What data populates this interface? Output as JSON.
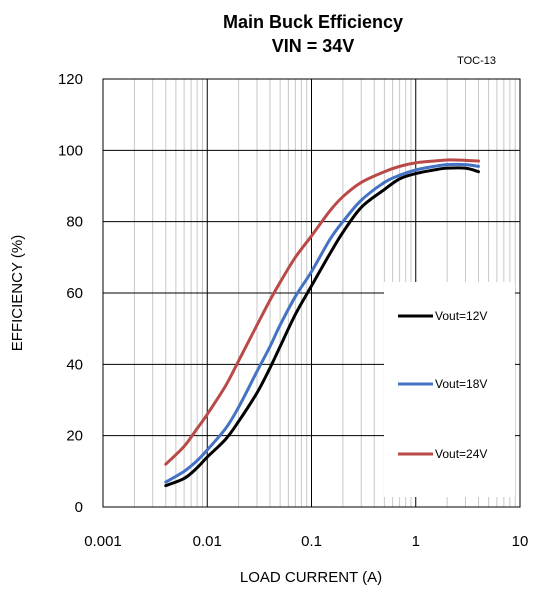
{
  "chart_data": {
    "type": "line",
    "title": "Main Buck Efficiency",
    "subtitle": "VIN = 34V",
    "code": "TOC-13",
    "xlabel": "LOAD CURRENT (A)",
    "ylabel": "EFFICIENCY (%)",
    "xscale": "log",
    "xlim": [
      0.001,
      10
    ],
    "ylim": [
      0,
      120
    ],
    "xticks": [
      "0.001",
      "0.01",
      "0.1",
      "1",
      "10"
    ],
    "yticks": [
      "0",
      "20",
      "40",
      "60",
      "80",
      "100",
      "120"
    ],
    "grid": true,
    "legend_position": "right",
    "series": [
      {
        "name": "Vout=12V",
        "color": "#000000",
        "x": [
          0.004,
          0.006,
          0.008,
          0.01,
          0.015,
          0.02,
          0.03,
          0.04,
          0.05,
          0.07,
          0.1,
          0.15,
          0.2,
          0.3,
          0.5,
          0.7,
          1,
          1.5,
          2,
          3,
          4
        ],
        "y": [
          6,
          8,
          11,
          14,
          19,
          24,
          32,
          39,
          45,
          54,
          62,
          71,
          77,
          84,
          89,
          92,
          93.5,
          94.5,
          95,
          95,
          94
        ]
      },
      {
        "name": "Vout=18V",
        "color": "#4472C4",
        "x": [
          0.004,
          0.006,
          0.008,
          0.01,
          0.015,
          0.02,
          0.03,
          0.04,
          0.05,
          0.07,
          0.1,
          0.15,
          0.2,
          0.3,
          0.5,
          0.7,
          1,
          1.5,
          2,
          3,
          4
        ],
        "y": [
          7,
          10,
          13,
          16,
          22,
          28,
          38,
          45,
          51,
          59,
          66,
          75,
          80,
          86,
          91,
          93,
          94.5,
          95.5,
          96,
          96,
          95.5
        ]
      },
      {
        "name": "Vout=24V",
        "color": "#B94A48",
        "x": [
          0.004,
          0.006,
          0.008,
          0.01,
          0.015,
          0.02,
          0.03,
          0.04,
          0.05,
          0.07,
          0.1,
          0.15,
          0.2,
          0.3,
          0.5,
          0.7,
          1,
          1.5,
          2,
          3,
          4
        ],
        "y": [
          12,
          17,
          22,
          26,
          34,
          41,
          51,
          58,
          63,
          70,
          76,
          83,
          87,
          91,
          94,
          95.5,
          96.5,
          97,
          97.3,
          97.2,
          97
        ]
      }
    ]
  }
}
